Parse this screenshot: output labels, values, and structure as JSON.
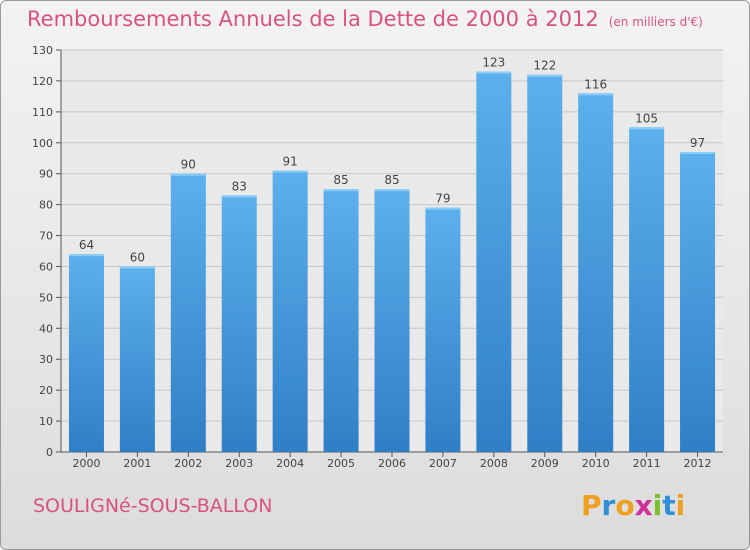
{
  "chart_data": {
    "type": "bar",
    "title": "Remboursements Annuels de la Dette de 2000 à 2012",
    "unit_note": "(en milliers d'€)",
    "categories": [
      "2000",
      "2001",
      "2002",
      "2003",
      "2004",
      "2005",
      "2006",
      "2007",
      "2008",
      "2009",
      "2010",
      "2011",
      "2012"
    ],
    "values": [
      64,
      60,
      90,
      83,
      91,
      85,
      85,
      79,
      123,
      122,
      116,
      105,
      97
    ],
    "ylim": [
      0,
      130
    ],
    "yticks": [
      0,
      10,
      20,
      30,
      40,
      50,
      60,
      70,
      80,
      90,
      100,
      110,
      120,
      130
    ],
    "grid": true,
    "bar_color": "#3f92d6",
    "bar_highlight": "#5aaeea"
  },
  "commune": "SOULIGNé-SOUS-BALLON",
  "logo": {
    "text": "Proxiti",
    "letters": [
      {
        "ch": "P",
        "color": "#f0a020"
      },
      {
        "ch": "r",
        "color": "#2f8fd8"
      },
      {
        "ch": "o",
        "color": "#f0a020"
      },
      {
        "ch": "x",
        "color": "#cc3399"
      },
      {
        "ch": "i",
        "color": "#7cbf2c"
      },
      {
        "ch": "t",
        "color": "#2f8fd8"
      },
      {
        "ch": "i",
        "color": "#f0a020"
      }
    ]
  }
}
